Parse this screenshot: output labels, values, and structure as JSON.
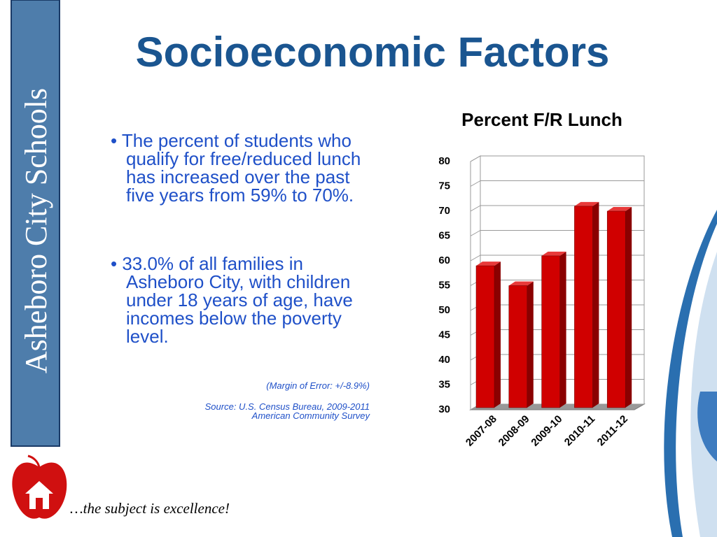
{
  "title": "Socioeconomic Factors",
  "sidebar": "Asheboro City Schools",
  "bullets": [
    "The percent of students who qualify for free/reduced lunch has increased over the past five years from 59% to 70%.",
    "33.0% of all families in Asheboro City, with children under 18 years of age, have incomes below the poverty level."
  ],
  "margin_note": "(Margin of Error: +/-8.9%)",
  "source": [
    "Source:  U.S. Census Bureau, 2009-2011",
    "American Community Survey"
  ],
  "tagline": "…the subject is excellence!",
  "chart_data": {
    "type": "bar3d",
    "title": "Percent F/R Lunch",
    "categories": [
      "2007-08",
      "2008-09",
      "2009-10",
      "2010-11",
      "2011-12"
    ],
    "values": [
      59,
      55,
      61,
      71,
      70
    ],
    "color": "#d00000",
    "ylim": [
      30,
      80
    ],
    "yticks": [
      30,
      35,
      40,
      45,
      50,
      55,
      60,
      65,
      70,
      75,
      80
    ],
    "grid": true
  }
}
